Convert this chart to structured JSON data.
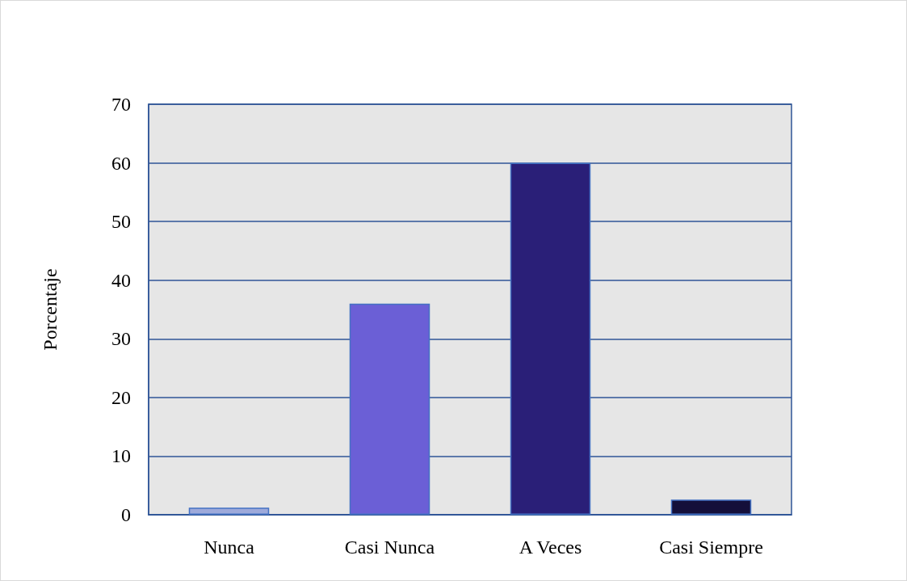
{
  "chart_data": {
    "type": "bar",
    "ylabel": "Porcentaje",
    "categories": [
      "Nunca",
      "Casi Nunca",
      "A Veces",
      "Casi Siempre"
    ],
    "values": [
      1.2,
      36,
      60,
      2.6
    ],
    "colors": [
      "#9eaadb",
      "#6b5fd6",
      "#2a1f78",
      "#140f3a"
    ],
    "ylim": [
      0,
      70
    ],
    "yticks": [
      0,
      10,
      20,
      30,
      40,
      50,
      60,
      70
    ],
    "grid": "y"
  }
}
